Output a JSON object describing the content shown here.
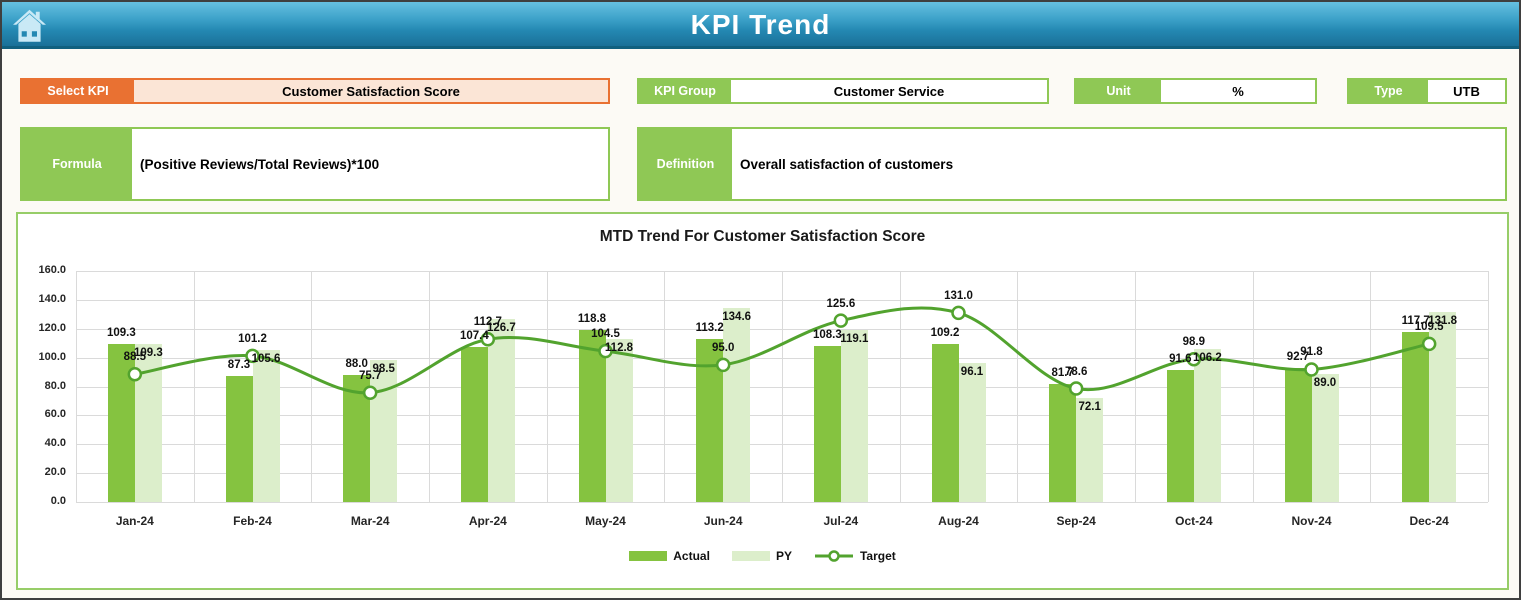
{
  "header": {
    "title": "KPI Trend"
  },
  "fields": {
    "select_kpi": {
      "label": "Select KPI",
      "value": "Customer Satisfaction Score"
    },
    "kpi_group": {
      "label": "KPI Group",
      "value": "Customer Service"
    },
    "unit": {
      "label": "Unit",
      "value": "%"
    },
    "type": {
      "label": "Type",
      "value": "UTB"
    },
    "formula": {
      "label": "Formula",
      "value": "(Positive Reviews/Total Reviews)*100"
    },
    "definition": {
      "label": "Definition",
      "value": "Overall satisfaction of customers"
    }
  },
  "chart_data": {
    "type": "bar",
    "title": "MTD Trend For Customer Satisfaction Score",
    "categories": [
      "Jan-24",
      "Feb-24",
      "Mar-24",
      "Apr-24",
      "May-24",
      "Jun-24",
      "Jul-24",
      "Aug-24",
      "Sep-24",
      "Oct-24",
      "Nov-24",
      "Dec-24"
    ],
    "series": [
      {
        "name": "Actual",
        "type": "bar",
        "color": "#85c340",
        "values": [
          109.3,
          87.3,
          88.0,
          107.4,
          118.8,
          113.2,
          108.3,
          109.2,
          81.7,
          91.6,
          92.7,
          117.7
        ]
      },
      {
        "name": "PY",
        "type": "bar",
        "color": "#dceecb",
        "values": [
          109.3,
          105.6,
          98.5,
          126.7,
          112.8,
          134.6,
          119.1,
          96.1,
          72.1,
          106.2,
          89.0,
          131.8
        ]
      },
      {
        "name": "Target",
        "type": "line",
        "color": "#52a32e",
        "marker": "circle-open",
        "values": [
          88.5,
          101.2,
          75.7,
          112.7,
          104.5,
          95.0,
          125.6,
          131.0,
          78.6,
          98.9,
          91.8,
          109.5
        ]
      }
    ],
    "ylim": [
      0,
      160
    ],
    "ytick_step": 20,
    "ytick_labels": [
      "0.0",
      "20.0",
      "40.0",
      "60.0",
      "80.0",
      "100.0",
      "120.0",
      "140.0",
      "160.0"
    ],
    "grid": true,
    "legend_position": "bottom",
    "xlabel": "",
    "ylabel": ""
  },
  "icons": {
    "home": "house"
  },
  "colors": {
    "accent_green": "#8fc855",
    "accent_orange": "#e97132",
    "select_value_bg": "#fbe5d6",
    "header_blue_top": "#66c0e1",
    "header_blue_bottom": "#1a7098"
  }
}
